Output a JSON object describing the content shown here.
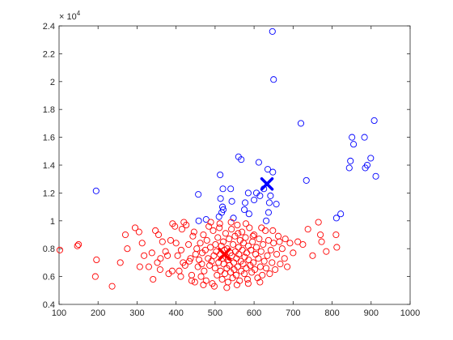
{
  "chart_data": {
    "type": "scatter",
    "title": "",
    "xlabel": "",
    "ylabel": "",
    "xlim": [
      100,
      1000
    ],
    "ylim": [
      4000,
      24000
    ],
    "x_ticks": [
      100,
      200,
      300,
      400,
      500,
      600,
      700,
      800,
      900,
      1000
    ],
    "y_ticks": [
      4000,
      6000,
      8000,
      10000,
      12000,
      14000,
      16000,
      18000,
      20000,
      22000,
      24000
    ],
    "x_tick_labels": [
      "100",
      "200",
      "300",
      "400",
      "500",
      "600",
      "700",
      "800",
      "900",
      "1000"
    ],
    "y_tick_labels": [
      "0.4",
      "0.6",
      "0.8",
      "1",
      "1.2",
      "1.4",
      "1.6",
      "1.8",
      "2",
      "2.2",
      "2.4"
    ],
    "y_exponent": {
      "base": "× 10",
      "power": "4"
    },
    "grid": false,
    "series": [
      {
        "color": "#0000ff",
        "marker": "circle-open",
        "points": [
          [
            195,
            12150
          ],
          [
            457,
            11900
          ],
          [
            477,
            10100
          ],
          [
            458,
            10000
          ],
          [
            510,
            10300
          ],
          [
            517,
            10600
          ],
          [
            519,
            11000
          ],
          [
            514,
            11600
          ],
          [
            521,
            10800
          ],
          [
            520,
            12300
          ],
          [
            513,
            13300
          ],
          [
            540,
            12300
          ],
          [
            543,
            11400
          ],
          [
            547,
            10200
          ],
          [
            560,
            14600
          ],
          [
            567,
            14400
          ],
          [
            577,
            11300
          ],
          [
            585,
            12000
          ],
          [
            587,
            10500
          ],
          [
            606,
            12000
          ],
          [
            612,
            14200
          ],
          [
            631,
            10000
          ],
          [
            637,
            10600
          ],
          [
            639,
            11300
          ],
          [
            642,
            11800
          ],
          [
            648,
            13500
          ],
          [
            657,
            11200
          ],
          [
            635,
            13700
          ],
          [
            720,
            17000
          ],
          [
            734,
            12900
          ],
          [
            811,
            10200
          ],
          [
            822,
            10500
          ],
          [
            844,
            13800
          ],
          [
            847,
            14300
          ],
          [
            851,
            16000
          ],
          [
            855,
            15500
          ],
          [
            883,
            16000
          ],
          [
            885,
            13800
          ],
          [
            890,
            14000
          ],
          [
            899,
            14500
          ],
          [
            908,
            17200
          ],
          [
            912,
            13200
          ],
          [
            647,
            23600
          ],
          [
            650,
            20150
          ],
          [
            625,
            12300
          ],
          [
            615,
            11800
          ],
          [
            575,
            10800
          ],
          [
            600,
            11500
          ]
        ]
      },
      {
        "color": "#ff0000",
        "marker": "circle-open",
        "points": [
          [
            102,
            7900
          ],
          [
            147,
            8200
          ],
          [
            150,
            8300
          ],
          [
            193,
            6000
          ],
          [
            196,
            7200
          ],
          [
            236,
            5300
          ],
          [
            257,
            7000
          ],
          [
            275,
            8000
          ],
          [
            295,
            9500
          ],
          [
            305,
            9200
          ],
          [
            307,
            6700
          ],
          [
            318,
            7500
          ],
          [
            330,
            6700
          ],
          [
            338,
            7700
          ],
          [
            341,
            5800
          ],
          [
            347,
            9300
          ],
          [
            352,
            7000
          ],
          [
            359,
            6500
          ],
          [
            365,
            8500
          ],
          [
            373,
            7800
          ],
          [
            378,
            7500
          ],
          [
            381,
            6200
          ],
          [
            391,
            9800
          ],
          [
            397,
            9600
          ],
          [
            400,
            8400
          ],
          [
            404,
            7500
          ],
          [
            408,
            6400
          ],
          [
            413,
            7900
          ],
          [
            418,
            7000
          ],
          [
            420,
            9900
          ],
          [
            423,
            6800
          ],
          [
            426,
            9700
          ],
          [
            432,
            8300
          ],
          [
            437,
            7300
          ],
          [
            440,
            6100
          ],
          [
            443,
            8900
          ],
          [
            446,
            9200
          ],
          [
            448,
            5600
          ],
          [
            450,
            7600
          ],
          [
            453,
            8000
          ],
          [
            456,
            6700
          ],
          [
            459,
            7200
          ],
          [
            462,
            8400
          ],
          [
            464,
            6000
          ],
          [
            467,
            7700
          ],
          [
            470,
            9000
          ],
          [
            472,
            6400
          ],
          [
            475,
            7900
          ],
          [
            477,
            5700
          ],
          [
            479,
            8600
          ],
          [
            482,
            7300
          ],
          [
            484,
            9600
          ],
          [
            486,
            6800
          ],
          [
            488,
            8100
          ],
          [
            491,
            7100
          ],
          [
            493,
            5500
          ],
          [
            495,
            9300
          ],
          [
            497,
            7500
          ],
          [
            500,
            6600
          ],
          [
            501,
            8300
          ],
          [
            503,
            7800
          ],
          [
            505,
            6100
          ],
          [
            507,
            8800
          ],
          [
            509,
            7000
          ],
          [
            511,
            9500
          ],
          [
            513,
            7600
          ],
          [
            514,
            6400
          ],
          [
            516,
            8200
          ],
          [
            518,
            5800
          ],
          [
            519,
            7300
          ],
          [
            521,
            8500
          ],
          [
            522,
            6900
          ],
          [
            524,
            7900
          ],
          [
            525,
            6200
          ],
          [
            527,
            9100
          ],
          [
            528,
            7400
          ],
          [
            530,
            6600
          ],
          [
            531,
            8000
          ],
          [
            533,
            5600
          ],
          [
            534,
            7200
          ],
          [
            536,
            8700
          ],
          [
            537,
            6800
          ],
          [
            539,
            7700
          ],
          [
            540,
            6300
          ],
          [
            542,
            9400
          ],
          [
            543,
            7500
          ],
          [
            545,
            5900
          ],
          [
            546,
            8300
          ],
          [
            548,
            7000
          ],
          [
            549,
            6500
          ],
          [
            551,
            8900
          ],
          [
            552,
            7800
          ],
          [
            554,
            6100
          ],
          [
            555,
            7300
          ],
          [
            557,
            9700
          ],
          [
            558,
            6700
          ],
          [
            560,
            8100
          ],
          [
            561,
            7600
          ],
          [
            563,
            5700
          ],
          [
            564,
            8600
          ],
          [
            566,
            7100
          ],
          [
            567,
            6400
          ],
          [
            569,
            9200
          ],
          [
            570,
            7900
          ],
          [
            572,
            6900
          ],
          [
            573,
            8400
          ],
          [
            575,
            6200
          ],
          [
            576,
            7400
          ],
          [
            578,
            8800
          ],
          [
            580,
            6600
          ],
          [
            581,
            7700
          ],
          [
            583,
            5800
          ],
          [
            585,
            8200
          ],
          [
            586,
            7200
          ],
          [
            588,
            9500
          ],
          [
            590,
            6800
          ],
          [
            592,
            7900
          ],
          [
            594,
            6300
          ],
          [
            596,
            8500
          ],
          [
            598,
            7000
          ],
          [
            600,
            9000
          ],
          [
            602,
            6500
          ],
          [
            604,
            7600
          ],
          [
            606,
            8100
          ],
          [
            609,
            5900
          ],
          [
            611,
            7300
          ],
          [
            613,
            8700
          ],
          [
            616,
            6700
          ],
          [
            618,
            7800
          ],
          [
            621,
            6100
          ],
          [
            623,
            8300
          ],
          [
            626,
            7100
          ],
          [
            629,
            9300
          ],
          [
            631,
            6600
          ],
          [
            634,
            7500
          ],
          [
            637,
            8600
          ],
          [
            640,
            6200
          ],
          [
            643,
            7900
          ],
          [
            646,
            7000
          ],
          [
            650,
            8400
          ],
          [
            654,
            6500
          ],
          [
            658,
            7600
          ],
          [
            662,
            8900
          ],
          [
            667,
            6900
          ],
          [
            672,
            8000
          ],
          [
            678,
            7300
          ],
          [
            685,
            6700
          ],
          [
            692,
            8400
          ],
          [
            700,
            7700
          ],
          [
            712,
            8500
          ],
          [
            725,
            8300
          ],
          [
            738,
            9400
          ],
          [
            750,
            7500
          ],
          [
            765,
            9900
          ],
          [
            770,
            9000
          ],
          [
            773,
            8500
          ],
          [
            785,
            7800
          ],
          [
            810,
            9000
          ],
          [
            812,
            8100
          ],
          [
            270,
            9000
          ],
          [
            313,
            8400
          ],
          [
            355,
            9000
          ],
          [
            386,
            8600
          ],
          [
            415,
            9400
          ],
          [
            434,
            7100
          ],
          [
            466,
            6900
          ],
          [
            489,
            9900
          ],
          [
            512,
            9800
          ],
          [
            541,
            9900
          ],
          [
            559,
            9100
          ],
          [
            579,
            9800
          ],
          [
            597,
            8900
          ],
          [
            619,
            9500
          ],
          [
            648,
            9300
          ],
          [
            665,
            8500
          ],
          [
            680,
            8700
          ],
          [
            530,
            5200
          ],
          [
            556,
            5400
          ],
          [
            585,
            5500
          ],
          [
            615,
            5600
          ],
          [
            470,
            5400
          ],
          [
            498,
            5300
          ],
          [
            440,
            5700
          ],
          [
            412,
            6000
          ],
          [
            390,
            6400
          ],
          [
            360,
            7300
          ]
        ]
      }
    ],
    "centroids": [
      {
        "x": 633,
        "y": 12650,
        "color": "#0000ff",
        "marker": "x-bold"
      },
      {
        "x": 524,
        "y": 7600,
        "color": "#ff0000",
        "marker": "x-bold"
      }
    ]
  }
}
